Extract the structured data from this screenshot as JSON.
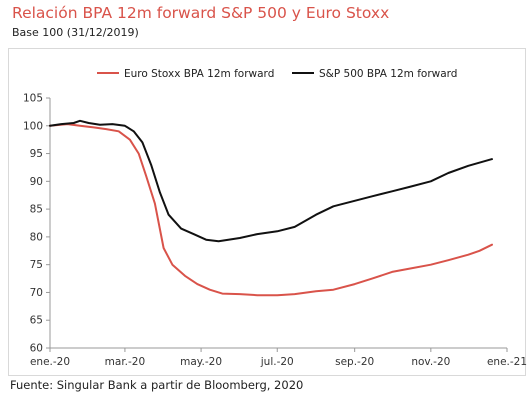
{
  "title": "Relación BPA 12m forward S&P 500 y Euro Stoxx",
  "subtitle": "Base 100 (31/12/2019)",
  "source": "Fuente: Singular Bank a partir de Bloomberg, 2020",
  "colors": {
    "euro": "#d9534a",
    "sp": "#111111",
    "axis": "#999999"
  },
  "chart_data": {
    "type": "line",
    "x_axis": {
      "tick_labels": [
        "ene.-20",
        "mar.-20",
        "may.-20",
        "jul.-20",
        "sep.-20",
        "nov.-20",
        "ene.-21"
      ],
      "tick_dates": [
        "2020-01-01",
        "2020-03-01",
        "2020-05-01",
        "2020-07-01",
        "2020-09-01",
        "2020-11-01",
        "2021-01-01"
      ],
      "range": [
        "2020-01-01",
        "2021-01-01"
      ]
    },
    "y_axis": {
      "range": [
        60,
        105
      ],
      "ticks": [
        60,
        65,
        70,
        75,
        80,
        85,
        90,
        95,
        100,
        105
      ]
    },
    "grid": false,
    "legend_placement": "top",
    "series": [
      {
        "name": "Euro Stoxx BPA 12m forward",
        "color": "#d9534a",
        "points": [
          [
            "2020-01-01",
            100.0
          ],
          [
            "2020-01-15",
            100.3
          ],
          [
            "2020-01-25",
            100.0
          ],
          [
            "2020-02-05",
            99.7
          ],
          [
            "2020-02-15",
            99.4
          ],
          [
            "2020-02-25",
            99.0
          ],
          [
            "2020-03-05",
            97.5
          ],
          [
            "2020-03-12",
            95.0
          ],
          [
            "2020-03-18",
            91.0
          ],
          [
            "2020-03-25",
            86.0
          ],
          [
            "2020-04-01",
            78.0
          ],
          [
            "2020-04-08",
            75.0
          ],
          [
            "2020-04-18",
            73.0
          ],
          [
            "2020-04-28",
            71.5
          ],
          [
            "2020-05-08",
            70.5
          ],
          [
            "2020-05-18",
            69.8
          ],
          [
            "2020-06-01",
            69.7
          ],
          [
            "2020-06-15",
            69.5
          ],
          [
            "2020-07-01",
            69.5
          ],
          [
            "2020-07-15",
            69.7
          ],
          [
            "2020-08-01",
            70.2
          ],
          [
            "2020-08-15",
            70.5
          ],
          [
            "2020-09-01",
            71.5
          ],
          [
            "2020-09-15",
            72.5
          ],
          [
            "2020-10-01",
            73.7
          ],
          [
            "2020-10-15",
            74.3
          ],
          [
            "2020-11-01",
            75.0
          ],
          [
            "2020-11-15",
            75.8
          ],
          [
            "2020-12-01",
            76.8
          ],
          [
            "2020-12-10",
            77.5
          ],
          [
            "2020-12-20",
            78.6
          ]
        ]
      },
      {
        "name": "S&P 500 BPA 12m forward",
        "color": "#111111",
        "points": [
          [
            "2020-01-01",
            100.0
          ],
          [
            "2020-01-10",
            100.3
          ],
          [
            "2020-01-20",
            100.5
          ],
          [
            "2020-01-25",
            100.9
          ],
          [
            "2020-02-01",
            100.5
          ],
          [
            "2020-02-10",
            100.2
          ],
          [
            "2020-02-20",
            100.3
          ],
          [
            "2020-03-01",
            100.0
          ],
          [
            "2020-03-08",
            99.0
          ],
          [
            "2020-03-15",
            97.0
          ],
          [
            "2020-03-22",
            93.0
          ],
          [
            "2020-03-29",
            88.0
          ],
          [
            "2020-04-05",
            84.0
          ],
          [
            "2020-04-15",
            81.5
          ],
          [
            "2020-04-25",
            80.5
          ],
          [
            "2020-05-05",
            79.5
          ],
          [
            "2020-05-15",
            79.2
          ],
          [
            "2020-06-01",
            79.8
          ],
          [
            "2020-06-15",
            80.5
          ],
          [
            "2020-07-01",
            81.0
          ],
          [
            "2020-07-15",
            81.8
          ],
          [
            "2020-08-01",
            84.0
          ],
          [
            "2020-08-15",
            85.5
          ],
          [
            "2020-09-01",
            86.5
          ],
          [
            "2020-09-15",
            87.3
          ],
          [
            "2020-10-01",
            88.2
          ],
          [
            "2020-10-15",
            89.0
          ],
          [
            "2020-11-01",
            90.0
          ],
          [
            "2020-11-15",
            91.5
          ],
          [
            "2020-12-01",
            92.8
          ],
          [
            "2020-12-20",
            94.0
          ]
        ]
      }
    ]
  }
}
